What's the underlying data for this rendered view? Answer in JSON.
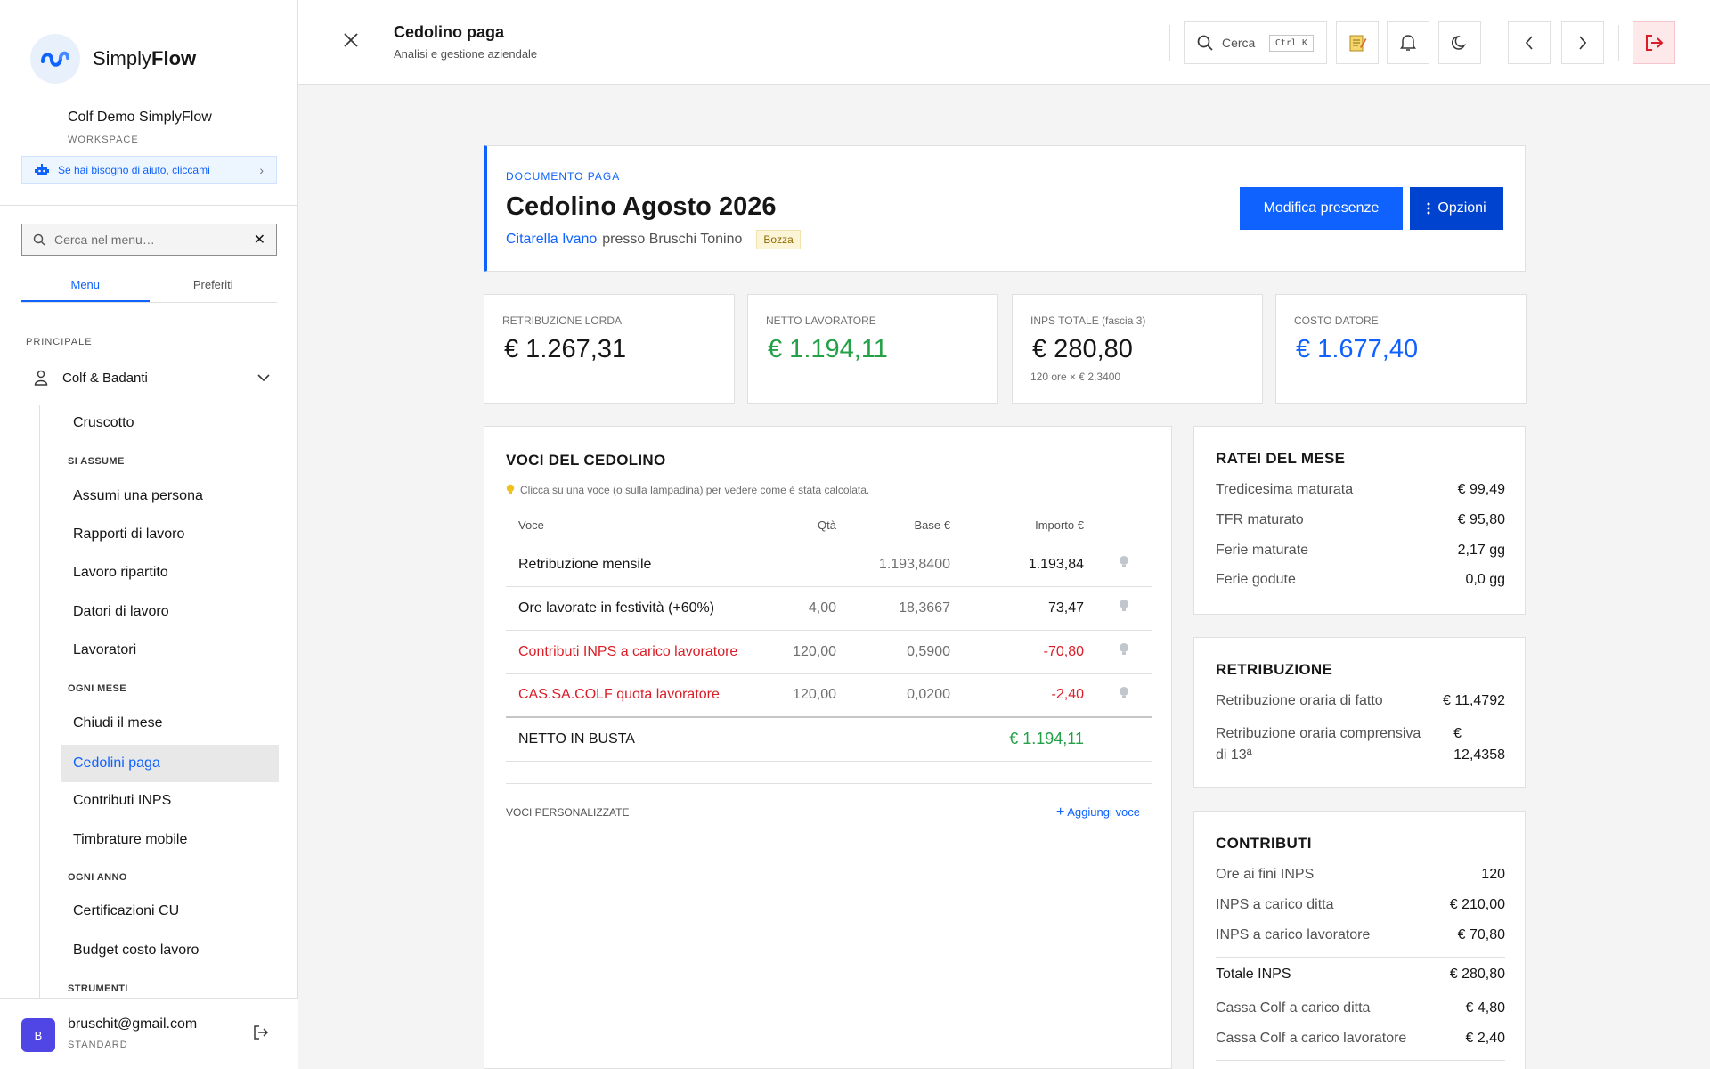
{
  "sidebar": {
    "brand_plain": "Simply",
    "brand_bold": "Flow",
    "workspace_name": "Colf Demo SimplyFlow",
    "workspace_label": "WORKSPACE",
    "help_text": "Se hai bisogno di aiuto, cliccami",
    "search_placeholder": "Cerca nel menu…",
    "tabs": [
      "Menu",
      "Preferiti"
    ],
    "section_principale": "PRINCIPALE",
    "group": "Colf & Badanti",
    "items": {
      "cruscotto": "Cruscotto",
      "si_assume": "SI ASSUME",
      "assumi": "Assumi una persona",
      "rapporti": "Rapporti di lavoro",
      "ripartito": "Lavoro ripartito",
      "datori": "Datori di lavoro",
      "lavoratori": "Lavoratori",
      "ogni_mese": "OGNI MESE",
      "chiudi": "Chiudi il mese",
      "cedolini": "Cedolini paga",
      "contributi": "Contributi INPS",
      "timbrature": "Timbrature mobile",
      "ogni_anno": "OGNI ANNO",
      "cu": "Certificazioni CU",
      "budget": "Budget costo lavoro",
      "strumenti": "STRUMENTI"
    },
    "user": {
      "initial": "B",
      "email": "bruschit@gmail.com",
      "plan": "STANDARD"
    }
  },
  "header": {
    "title": "Cedolino paga",
    "subtitle": "Analisi e gestione aziendale",
    "search_label": "Cerca",
    "search_shortcut": "Ctrl K"
  },
  "document": {
    "label": "DOCUMENTO PAGA",
    "title": "Cedolino Agosto 2026",
    "worker": "Citarella Ivano",
    "presso": "presso Bruschi Tonino",
    "status": "Bozza",
    "edit_button": "Modifica presenze",
    "options_button": "Opzioni"
  },
  "kpis": [
    {
      "label": "RETRIBUZIONE LORDA",
      "value": "€  1.267,31",
      "color": "#161616",
      "note": ""
    },
    {
      "label": "NETTO LAVORATORE",
      "value": "€  1.194,11",
      "color": "#24a148",
      "note": ""
    },
    {
      "label": "INPS TOTALE (fascia 3)",
      "value": "€  280,80",
      "color": "#161616",
      "note": "120 ore × €  2,3400"
    },
    {
      "label": "COSTO DATORE",
      "value": "€  1.677,40",
      "color": "#0f62fe",
      "note": ""
    }
  ],
  "voci": {
    "title": "VOCI DEL CEDOLINO",
    "hint": "Clicca su una voce (o sulla lampadina) per vedere come è stata calcolata.",
    "columns": [
      "Voce",
      "Qtà",
      "Base €",
      "Importo €"
    ],
    "rows": [
      {
        "voce": "Retribuzione mensile",
        "qta": "",
        "base": "1.193,8400",
        "importo": "1.193,84",
        "negative": false
      },
      {
        "voce": "Ore lavorate in festività (+60%)",
        "qta": "4,00",
        "base": "18,3667",
        "importo": "73,47",
        "negative": false
      },
      {
        "voce": "Contributi INPS a carico lavoratore",
        "qta": "120,00",
        "base": "0,5900",
        "importo": "-70,80",
        "negative": true
      },
      {
        "voce": "CAS.SA.COLF quota lavoratore",
        "qta": "120,00",
        "base": "0,0200",
        "importo": "-2,40",
        "negative": true
      }
    ],
    "total_label": "NETTO IN BUSTA",
    "total_value": "€  1.194,11",
    "custom_label": "VOCI PERSONALIZZATE",
    "add_label": "Aggiungi voce"
  },
  "ratei": {
    "title": "RATEI DEL MESE",
    "rows": [
      {
        "k": "Tredicesima maturata",
        "v": "€  99,49"
      },
      {
        "k": "TFR maturato",
        "v": "€  95,80"
      },
      {
        "k": "Ferie maturate",
        "v": "2,17 gg"
      },
      {
        "k": "Ferie godute",
        "v": "0,0 gg"
      }
    ]
  },
  "retribuzione": {
    "title": "RETRIBUZIONE",
    "row1_k": "Retribuzione oraria di fatto",
    "row1_v": "€  11,4792",
    "row2_k1": "Retribuzione oraria comprensiva",
    "row2_k2": "di 13ª",
    "row2_v1": "€",
    "row2_v2": "12,4358"
  },
  "contributi": {
    "title": "CONTRIBUTI",
    "rows": [
      {
        "k": "Ore ai fini INPS",
        "v": "120"
      },
      {
        "k": "INPS a carico ditta",
        "v": "€  210,00"
      },
      {
        "k": "INPS a carico lavoratore",
        "v": "€  70,80"
      },
      {
        "k": "Totale INPS",
        "v": "€  280,80"
      },
      {
        "k": "Cassa Colf a carico ditta",
        "v": "€  4,80"
      },
      {
        "k": "Cassa Colf a carico lavoratore",
        "v": "€  2,40"
      }
    ]
  }
}
